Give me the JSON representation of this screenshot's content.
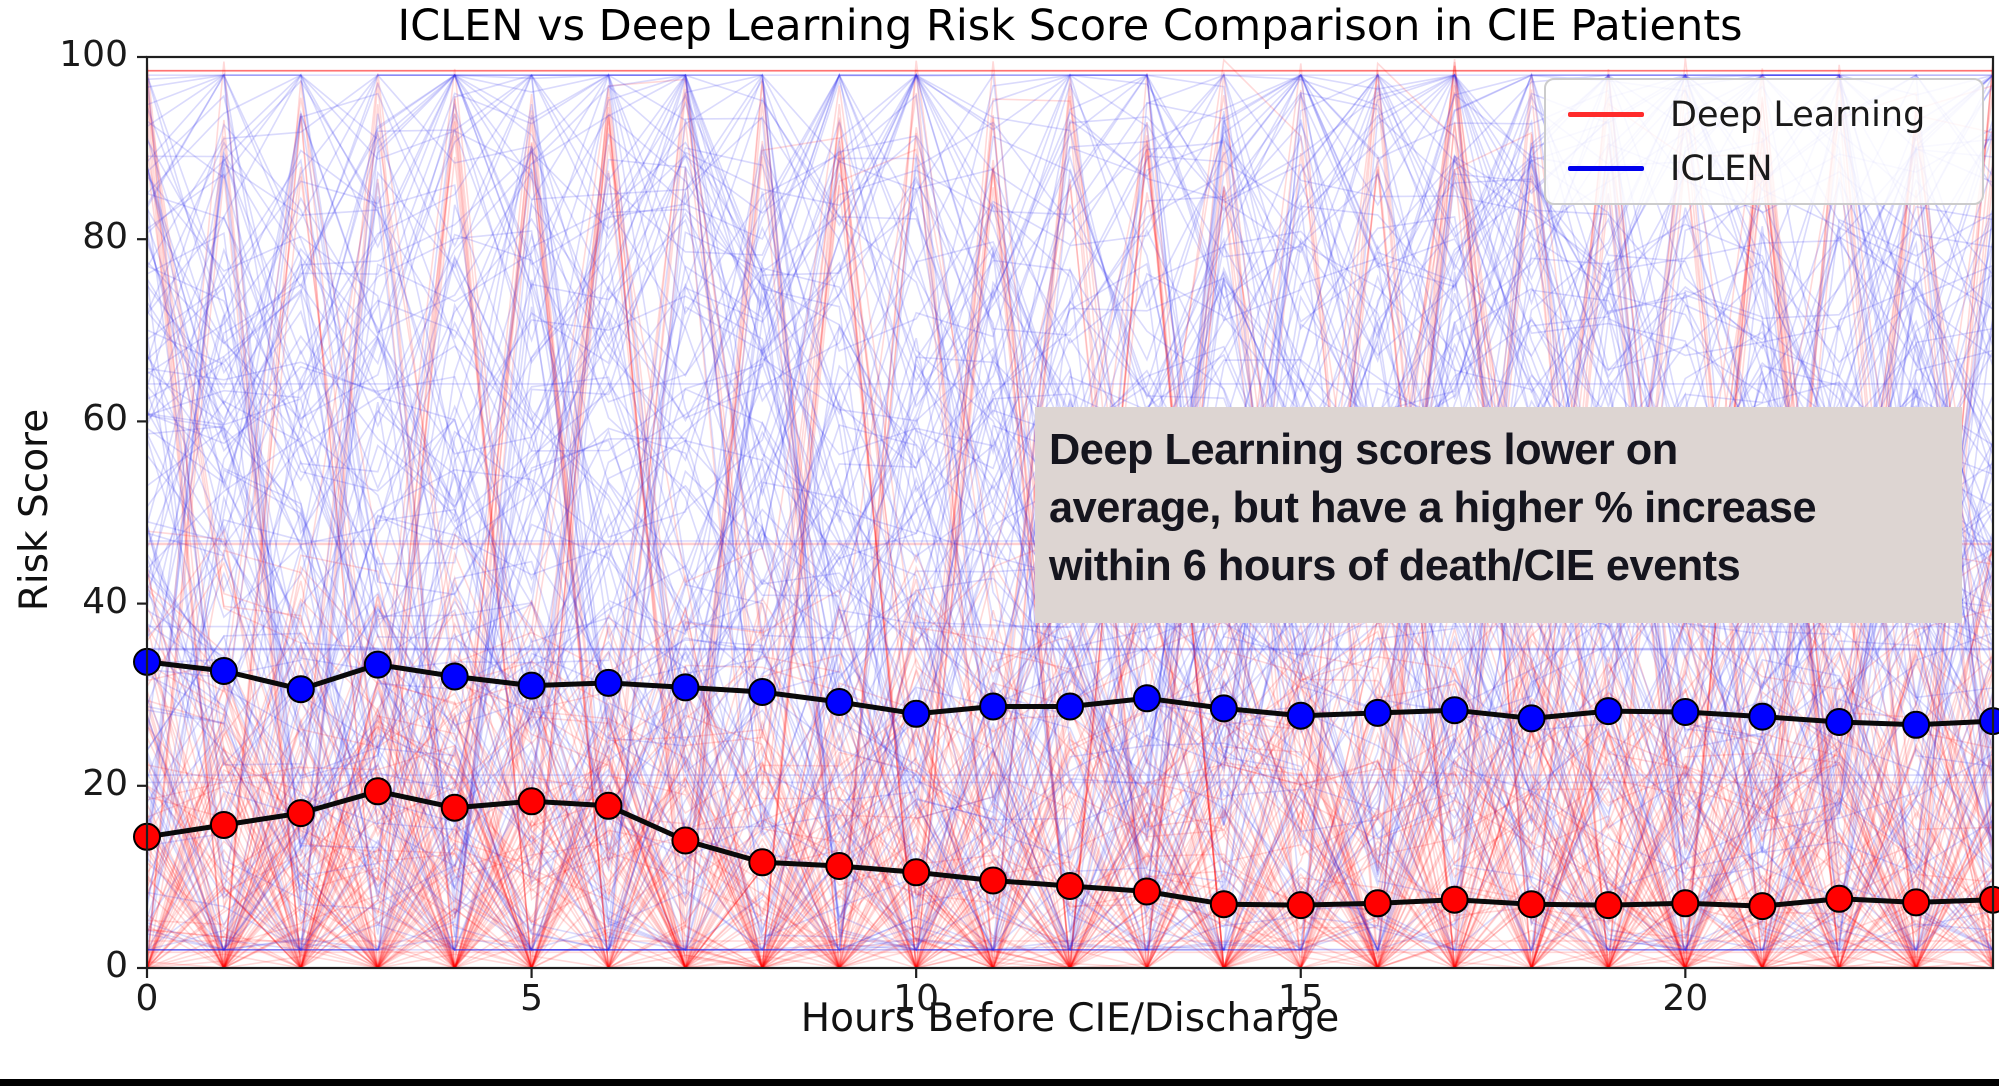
{
  "title": "ICLEN vs Deep Learning Risk Score Comparison in CIE Patients",
  "axes": {
    "x_label": "Hours Before CIE/Discharge",
    "y_label": "Risk Score",
    "x_ticks": [
      {
        "value": 0,
        "label": "0"
      },
      {
        "value": 5,
        "label": "5"
      },
      {
        "value": 10,
        "label": "10"
      },
      {
        "value": 15,
        "label": "15"
      },
      {
        "value": 20,
        "label": "20"
      }
    ],
    "y_ticks": [
      {
        "value": 0,
        "label": "0"
      },
      {
        "value": 20,
        "label": "20"
      },
      {
        "value": 40,
        "label": "40"
      },
      {
        "value": 60,
        "label": "60"
      },
      {
        "value": 80,
        "label": "80"
      },
      {
        "value": 100,
        "label": "100"
      }
    ]
  },
  "legend": {
    "items": [
      {
        "label": "Deep Learning",
        "color": "#ff2b2b"
      },
      {
        "label": "ICLEN",
        "color": "#0000ee"
      }
    ]
  },
  "annotation": {
    "text": "Deep Learning scores lower on\naverage, but have a higher % increase\nwithin 6 hours of death/CIE events",
    "bg_color": "#ddd5d2",
    "text_color": "#15151e"
  },
  "chart_data": {
    "type": "line",
    "title": "ICLEN vs Deep Learning Risk Score Comparison in CIE Patients",
    "xlabel": "Hours Before CIE/Discharge",
    "ylabel": "Risk Score",
    "xlim": [
      0,
      24
    ],
    "ylim": [
      0,
      100
    ],
    "grid": false,
    "legend_position": "upper right",
    "x": [
      0,
      1,
      2,
      3,
      4,
      5,
      6,
      7,
      8,
      9,
      10,
      11,
      12,
      13,
      14,
      15,
      16,
      17,
      18,
      19,
      20,
      21,
      22,
      23,
      24
    ],
    "series": [
      {
        "name": "Deep Learning (mean)",
        "marker_color": "#ff0000",
        "line_color": "#0a0a0a",
        "values": [
          14.4,
          15.7,
          17.0,
          19.4,
          17.6,
          18.3,
          17.8,
          14.0,
          11.6,
          11.2,
          10.5,
          9.6,
          9.0,
          8.4,
          7.0,
          6.9,
          7.1,
          7.5,
          7.0,
          6.9,
          7.1,
          6.8,
          7.6,
          7.2,
          7.5
        ]
      },
      {
        "name": "ICLEN (mean)",
        "marker_color": "#0000ff",
        "line_color": "#0a0a0a",
        "values": [
          33.6,
          32.6,
          30.6,
          33.3,
          32.0,
          31.0,
          31.3,
          30.8,
          30.3,
          29.2,
          27.9,
          28.7,
          28.7,
          29.6,
          28.5,
          27.7,
          28.0,
          28.3,
          27.4,
          28.2,
          28.1,
          27.6,
          27.0,
          26.7,
          27.1
        ]
      }
    ],
    "background": {
      "description": "individual patient risk-score trajectories, red = Deep Learning, blue = ICLEN",
      "n_red": 150,
      "n_blue": 150,
      "red_color": "#ff0000",
      "blue_color": "#2222ee",
      "red_alpha": 0.15,
      "blue_alpha": 0.17,
      "seed": 11
    }
  }
}
